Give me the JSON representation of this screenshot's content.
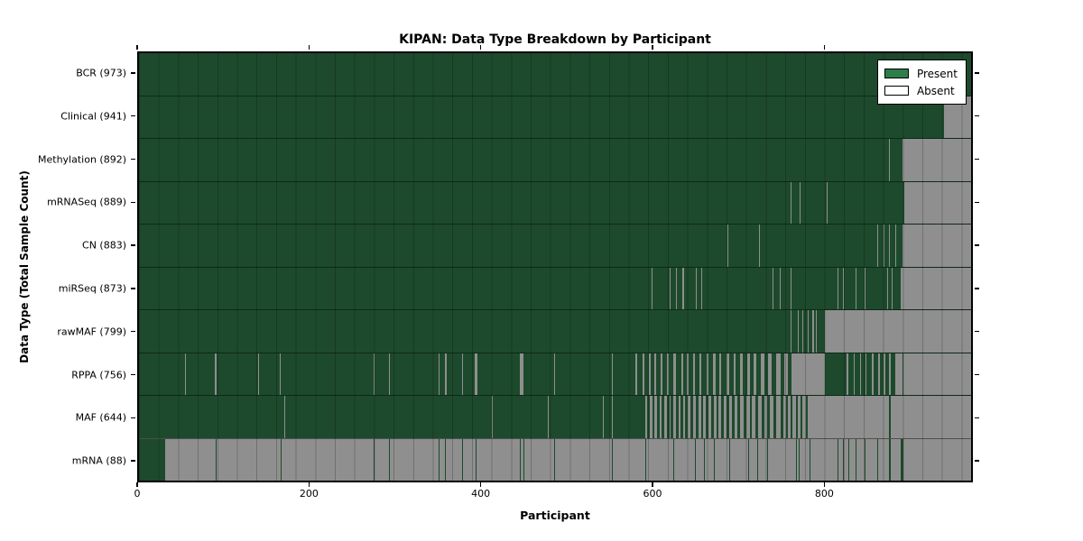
{
  "title": "KIPAN: Data Type Breakdown by Participant",
  "colors": {
    "present": "#1d4a2c",
    "absent": "#8f8f8f",
    "legend_present": "#2e7d4a",
    "legend_absent": "#ffffff",
    "spine": "#000000",
    "background": "#ffffff"
  },
  "chart_data": {
    "type": "heatmap",
    "title": "KIPAN: Data Type Breakdown by Participant",
    "xlabel": "Participant",
    "ylabel": "Data Type (Total Sample Count)",
    "x_ticks": [
      0,
      200,
      400,
      600,
      800
    ],
    "x_max": 973,
    "grid": "vertical cell borders about every 23 participants, row separator lines",
    "legend_position": "upper right",
    "legend": [
      {
        "label": "Present",
        "color": "#2e7d4a"
      },
      {
        "label": "Absent",
        "color": "#ffffff"
      }
    ],
    "rows": [
      {
        "label": "BCR (973)",
        "name": "BCR",
        "count": 973,
        "base": "present",
        "islands": []
      },
      {
        "label": "Clinical (941)",
        "name": "Clinical",
        "count": 941,
        "base": "present",
        "islands": [
          [
            941,
            973
          ]
        ]
      },
      {
        "label": "Methylation (892)",
        "name": "Methylation",
        "count": 892,
        "base": "present",
        "islands": [
          [
            877,
            878
          ],
          [
            893,
            973
          ]
        ]
      },
      {
        "label": "mRNASeq (889)",
        "name": "mRNASeq",
        "count": 889,
        "base": "present",
        "islands": [
          [
            762,
            763
          ],
          [
            773,
            774
          ],
          [
            804,
            805
          ],
          [
            895,
            973
          ]
        ]
      },
      {
        "label": "CN (883)",
        "name": "CN",
        "count": 883,
        "base": "present",
        "islands": [
          [
            688,
            689
          ],
          [
            725,
            726
          ],
          [
            863,
            864
          ],
          [
            871,
            872
          ],
          [
            877,
            878
          ],
          [
            884,
            885
          ],
          [
            893,
            973
          ]
        ]
      },
      {
        "label": "miRSeq (873)",
        "name": "miRSeq",
        "count": 873,
        "base": "present",
        "islands": [
          [
            599,
            600
          ],
          [
            621,
            622
          ],
          [
            628,
            629
          ],
          [
            635,
            637
          ],
          [
            651,
            652
          ],
          [
            657,
            658
          ],
          [
            741,
            742
          ],
          [
            749,
            750
          ],
          [
            762,
            763
          ],
          [
            817,
            818
          ],
          [
            823,
            824
          ],
          [
            838,
            839
          ],
          [
            849,
            850
          ],
          [
            875,
            876
          ],
          [
            880,
            881
          ],
          [
            891,
            973
          ]
        ]
      },
      {
        "label": "rawMAF (799)",
        "name": "rawMAF",
        "count": 799,
        "base": "present",
        "islands": [
          [
            762,
            763
          ],
          [
            770,
            771
          ],
          [
            776,
            777
          ],
          [
            782,
            783
          ],
          [
            787,
            789
          ],
          [
            791,
            792
          ],
          [
            802,
            973
          ]
        ]
      },
      {
        "label": "RPPA (756)",
        "name": "RPPA",
        "count": 756,
        "base": "present",
        "islands": [
          [
            54,
            55
          ],
          [
            89,
            91
          ],
          [
            139,
            140
          ],
          [
            165,
            166
          ],
          [
            274,
            275
          ],
          [
            292,
            293
          ],
          [
            350,
            351
          ],
          [
            358,
            360
          ],
          [
            378,
            379
          ],
          [
            393,
            396
          ],
          [
            445,
            450
          ],
          [
            485,
            487
          ],
          [
            553,
            554
          ],
          [
            580,
            583
          ],
          [
            589,
            591
          ],
          [
            596,
            598
          ],
          [
            603,
            605
          ],
          [
            610,
            612
          ],
          [
            617,
            619
          ],
          [
            625,
            628
          ],
          [
            634,
            636
          ],
          [
            641,
            643
          ],
          [
            648,
            650
          ],
          [
            655,
            658
          ],
          [
            664,
            666
          ],
          [
            671,
            674
          ],
          [
            679,
            681
          ],
          [
            687,
            690
          ],
          [
            695,
            698
          ],
          [
            703,
            706
          ],
          [
            711,
            714
          ],
          [
            719,
            722
          ],
          [
            727,
            731
          ],
          [
            736,
            740
          ],
          [
            745,
            750
          ],
          [
            755,
            759
          ],
          [
            763,
            802
          ],
          [
            827,
            830
          ],
          [
            836,
            837
          ],
          [
            843,
            844
          ],
          [
            850,
            851
          ],
          [
            857,
            859
          ],
          [
            864,
            866
          ],
          [
            871,
            873
          ],
          [
            877,
            879
          ],
          [
            884,
            893
          ],
          [
            894,
            973
          ]
        ]
      },
      {
        "label": "MAF (644)",
        "name": "MAF",
        "count": 644,
        "base": "present",
        "islands": [
          [
            170,
            171
          ],
          [
            413,
            414
          ],
          [
            478,
            479
          ],
          [
            542,
            543
          ],
          [
            553,
            554
          ],
          [
            592,
            594
          ],
          [
            597,
            600
          ],
          [
            603,
            606
          ],
          [
            609,
            611
          ],
          [
            614,
            617
          ],
          [
            620,
            622
          ],
          [
            625,
            628
          ],
          [
            631,
            633
          ],
          [
            636,
            639
          ],
          [
            642,
            645
          ],
          [
            648,
            651
          ],
          [
            654,
            657
          ],
          [
            660,
            663
          ],
          [
            666,
            669
          ],
          [
            672,
            675
          ],
          [
            678,
            681
          ],
          [
            684,
            687
          ],
          [
            690,
            693
          ],
          [
            696,
            700
          ],
          [
            703,
            707
          ],
          [
            710,
            714
          ],
          [
            717,
            721
          ],
          [
            724,
            728
          ],
          [
            731,
            735
          ],
          [
            738,
            742
          ],
          [
            745,
            750
          ],
          [
            753,
            757
          ],
          [
            759,
            762
          ],
          [
            764,
            768
          ],
          [
            770,
            774
          ],
          [
            776,
            780
          ],
          [
            782,
            877
          ],
          [
            879,
            973
          ]
        ]
      },
      {
        "label": "mRNA (88)",
        "name": "mRNA",
        "count": 88,
        "base": "absent",
        "islands": [
          [
            0,
            31
          ],
          [
            90,
            91
          ],
          [
            166,
            167
          ],
          [
            274,
            275
          ],
          [
            292,
            293
          ],
          [
            350,
            351
          ],
          [
            358,
            359
          ],
          [
            378,
            379
          ],
          [
            394,
            395
          ],
          [
            445,
            446
          ],
          [
            450,
            451
          ],
          [
            485,
            486
          ],
          [
            553,
            554
          ],
          [
            592,
            593
          ],
          [
            625,
            626
          ],
          [
            650,
            651
          ],
          [
            661,
            662
          ],
          [
            672,
            673
          ],
          [
            690,
            691
          ],
          [
            712,
            713
          ],
          [
            723,
            724
          ],
          [
            735,
            736
          ],
          [
            768,
            769
          ],
          [
            771,
            772
          ],
          [
            784,
            785
          ],
          [
            817,
            818
          ],
          [
            823,
            824
          ],
          [
            830,
            831
          ],
          [
            838,
            839
          ],
          [
            849,
            850
          ],
          [
            863,
            864
          ],
          [
            877,
            879
          ],
          [
            891,
            894
          ]
        ]
      }
    ]
  }
}
